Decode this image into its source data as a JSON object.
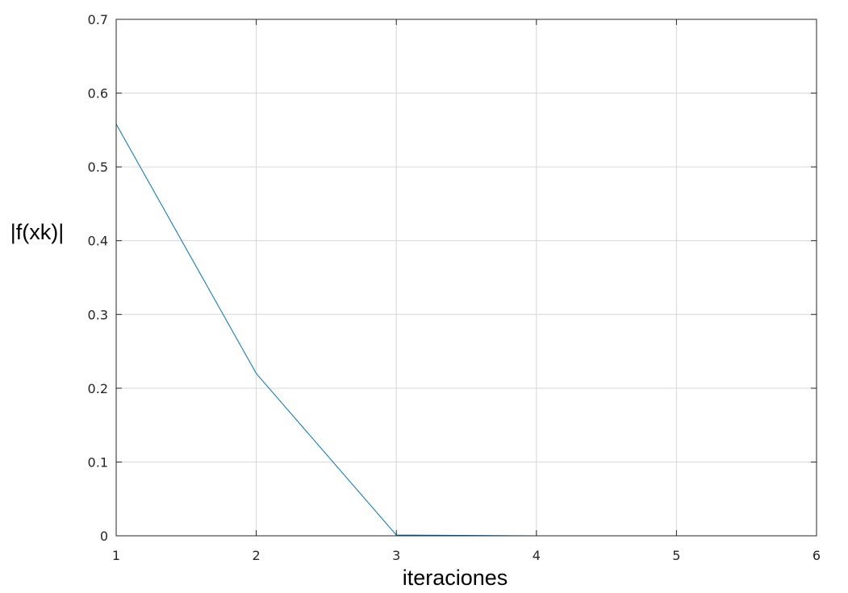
{
  "chart_data": {
    "type": "line",
    "title": "",
    "xlabel": "iteraciones",
    "ylabel": "|f(xk)|",
    "xlim": [
      1,
      6
    ],
    "ylim": [
      0,
      0.7
    ],
    "xticks": [
      "1",
      "2",
      "3",
      "4",
      "5",
      "6"
    ],
    "yticks": [
      "0",
      "0.1",
      "0.2",
      "0.3",
      "0.4",
      "0.5",
      "0.6",
      "0.7"
    ],
    "grid": true,
    "series": [
      {
        "x": [
          1,
          2,
          3,
          4,
          5,
          6
        ],
        "y": [
          0.558,
          0.22,
          0.001,
          0.0,
          0.0,
          0.0
        ],
        "color": "#0072bd"
      }
    ]
  }
}
